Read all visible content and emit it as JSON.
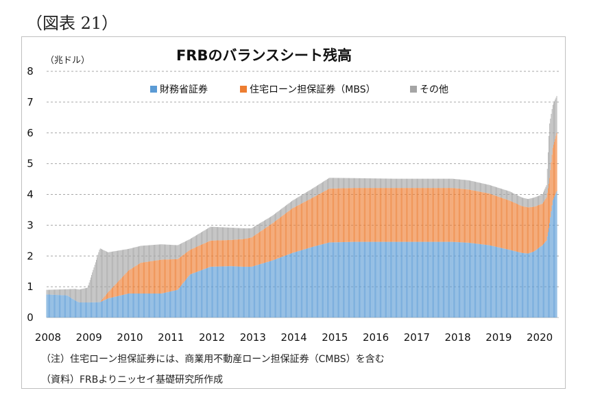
{
  "figure_label": "（図表 21）",
  "unit_label": "（兆ドル）",
  "notes": {
    "note": "（注）住宅ローン担保証券には、商業用不動産ローン担保証券（CMBS）を含む",
    "source": "（資料）FRBよりニッセイ基礎研究所作成"
  },
  "colors": {
    "treasury": "#5b9bd5",
    "mbs": "#ed7d31",
    "other": "#a5a5a5",
    "grid": "#a6a6a6"
  },
  "chart_data": {
    "type": "bar",
    "stacked": true,
    "title": "FRBのバランスシート残高",
    "xlabel": "",
    "ylabel": "（兆ドル）",
    "ylim": [
      0,
      8
    ],
    "yticks": [
      0,
      1,
      2,
      3,
      4,
      5,
      6,
      7,
      8
    ],
    "xticks": [
      "2008",
      "2009",
      "2010",
      "2011",
      "2012",
      "2013",
      "2014",
      "2015",
      "2016",
      "2017",
      "2018",
      "2019",
      "2020"
    ],
    "legend_position": "top",
    "grid": "horizontal dashed",
    "x_keyframes": [
      2008.0,
      2008.5,
      2008.7,
      2008.8,
      2009.0,
      2009.3,
      2009.5,
      2010.0,
      2010.3,
      2010.8,
      2011.2,
      2011.5,
      2012.0,
      2012.5,
      2012.8,
      2013.0,
      2013.5,
      2014.0,
      2014.5,
      2014.9,
      2015.5,
      2016.5,
      2017.5,
      2017.9,
      2018.3,
      2018.8,
      2019.3,
      2019.6,
      2019.75,
      2019.9,
      2020.1,
      2020.2,
      2020.27,
      2020.35,
      2020.45
    ],
    "series": [
      {
        "name": "財務省証券",
        "color": "#5b9bd5",
        "values": [
          0.75,
          0.72,
          0.55,
          0.49,
          0.49,
          0.5,
          0.62,
          0.78,
          0.78,
          0.78,
          0.9,
          1.4,
          1.65,
          1.67,
          1.65,
          1.65,
          1.85,
          2.1,
          2.3,
          2.44,
          2.46,
          2.46,
          2.46,
          2.46,
          2.43,
          2.35,
          2.2,
          2.1,
          2.08,
          2.15,
          2.35,
          2.5,
          3.0,
          3.8,
          4.1
        ]
      },
      {
        "name": "住宅ローン担保証券（MBS）",
        "color": "#ed7d31",
        "values": [
          0,
          0,
          0,
          0,
          0,
          0,
          0.2,
          0.75,
          1.0,
          1.1,
          1.0,
          0.8,
          0.85,
          0.85,
          0.9,
          0.95,
          1.2,
          1.45,
          1.6,
          1.75,
          1.75,
          1.75,
          1.75,
          1.75,
          1.73,
          1.68,
          1.6,
          1.52,
          1.5,
          1.45,
          1.35,
          1.4,
          1.45,
          1.7,
          1.9
        ]
      },
      {
        "name": "その他",
        "color": "#a5a5a5",
        "values": [
          0.15,
          0.2,
          0.38,
          0.42,
          0.48,
          1.75,
          1.3,
          0.7,
          0.55,
          0.5,
          0.45,
          0.35,
          0.45,
          0.4,
          0.35,
          0.3,
          0.25,
          0.25,
          0.3,
          0.35,
          0.32,
          0.3,
          0.3,
          0.3,
          0.3,
          0.28,
          0.3,
          0.28,
          0.27,
          0.3,
          0.3,
          0.4,
          1.8,
          1.4,
          1.2
        ]
      }
    ]
  }
}
